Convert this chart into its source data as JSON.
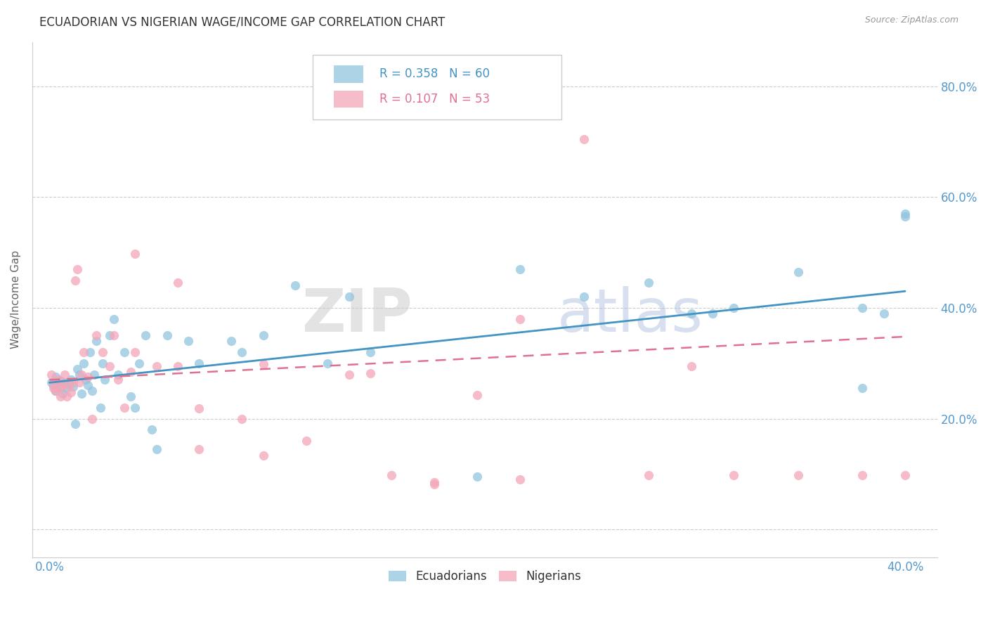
{
  "title": "ECUADORIAN VS NIGERIAN WAGE/INCOME GAP CORRELATION CHART",
  "source": "Source: ZipAtlas.com",
  "ylabel": "Wage/Income Gap",
  "watermark": "ZIPatlas",
  "legend_blue_r": "0.358",
  "legend_blue_n": "60",
  "legend_pink_r": "0.107",
  "legend_pink_n": "53",
  "blue_color": "#92c5de",
  "pink_color": "#f4a6b8",
  "line_blue_color": "#4393c3",
  "line_pink_color": "#e07090",
  "title_color": "#333333",
  "axis_label_color": "#5599cc",
  "background_color": "#ffffff",
  "blue_scatter_x": [
    0.001,
    0.002,
    0.003,
    0.003,
    0.004,
    0.005,
    0.005,
    0.006,
    0.007,
    0.008,
    0.009,
    0.01,
    0.011,
    0.012,
    0.013,
    0.014,
    0.015,
    0.016,
    0.017,
    0.018,
    0.019,
    0.02,
    0.021,
    0.022,
    0.024,
    0.025,
    0.026,
    0.028,
    0.03,
    0.032,
    0.035,
    0.038,
    0.04,
    0.042,
    0.045,
    0.048,
    0.05,
    0.055,
    0.065,
    0.07,
    0.085,
    0.09,
    0.1,
    0.115,
    0.13,
    0.14,
    0.15,
    0.2,
    0.22,
    0.25,
    0.28,
    0.3,
    0.31,
    0.32,
    0.35,
    0.38,
    0.38,
    0.39,
    0.4,
    0.4
  ],
  "blue_scatter_y": [
    0.265,
    0.26,
    0.275,
    0.25,
    0.258,
    0.268,
    0.255,
    0.245,
    0.265,
    0.255,
    0.262,
    0.27,
    0.258,
    0.19,
    0.29,
    0.28,
    0.245,
    0.3,
    0.27,
    0.26,
    0.32,
    0.25,
    0.28,
    0.34,
    0.22,
    0.3,
    0.27,
    0.35,
    0.38,
    0.28,
    0.32,
    0.24,
    0.22,
    0.3,
    0.35,
    0.18,
    0.145,
    0.35,
    0.34,
    0.3,
    0.34,
    0.32,
    0.35,
    0.44,
    0.3,
    0.42,
    0.32,
    0.095,
    0.47,
    0.42,
    0.445,
    0.39,
    0.39,
    0.4,
    0.465,
    0.255,
    0.4,
    0.39,
    0.57,
    0.565
  ],
  "pink_scatter_x": [
    0.001,
    0.002,
    0.002,
    0.003,
    0.004,
    0.005,
    0.005,
    0.006,
    0.007,
    0.008,
    0.009,
    0.01,
    0.011,
    0.012,
    0.013,
    0.014,
    0.015,
    0.016,
    0.018,
    0.02,
    0.022,
    0.025,
    0.028,
    0.03,
    0.032,
    0.035,
    0.038,
    0.04,
    0.05,
    0.06,
    0.07,
    0.09,
    0.1,
    0.12,
    0.14,
    0.16,
    0.18,
    0.2,
    0.22,
    0.25,
    0.28,
    0.3,
    0.32,
    0.35,
    0.38,
    0.4,
    0.04,
    0.06,
    0.07,
    0.1,
    0.15,
    0.18,
    0.22
  ],
  "pink_scatter_y": [
    0.28,
    0.255,
    0.265,
    0.25,
    0.27,
    0.255,
    0.24,
    0.26,
    0.28,
    0.24,
    0.26,
    0.248,
    0.265,
    0.45,
    0.47,
    0.265,
    0.28,
    0.32,
    0.275,
    0.2,
    0.35,
    0.32,
    0.295,
    0.35,
    0.27,
    0.22,
    0.285,
    0.32,
    0.295,
    0.295,
    0.218,
    0.2,
    0.298,
    0.16,
    0.28,
    0.098,
    0.085,
    0.242,
    0.38,
    0.705,
    0.098,
    0.295,
    0.098,
    0.098,
    0.098,
    0.098,
    0.498,
    0.445,
    0.145,
    0.134,
    0.282,
    0.082,
    0.09
  ],
  "xlim": [
    -0.008,
    0.415
  ],
  "ylim": [
    -0.05,
    0.88
  ],
  "ytick_positions": [
    0.0,
    0.2,
    0.4,
    0.6,
    0.8
  ],
  "ytick_labels": [
    "",
    "20.0%",
    "40.0%",
    "60.0%",
    "80.0%"
  ],
  "xtick_positions": [
    0.0,
    0.4
  ],
  "xtick_labels": [
    "0.0%",
    "40.0%"
  ],
  "blue_line_x0": 0.0,
  "blue_line_x1": 0.4,
  "blue_line_y0": 0.265,
  "blue_line_y1": 0.43,
  "pink_line_x0": 0.0,
  "pink_line_x1": 0.4,
  "pink_line_y0": 0.27,
  "pink_line_y1": 0.348
}
